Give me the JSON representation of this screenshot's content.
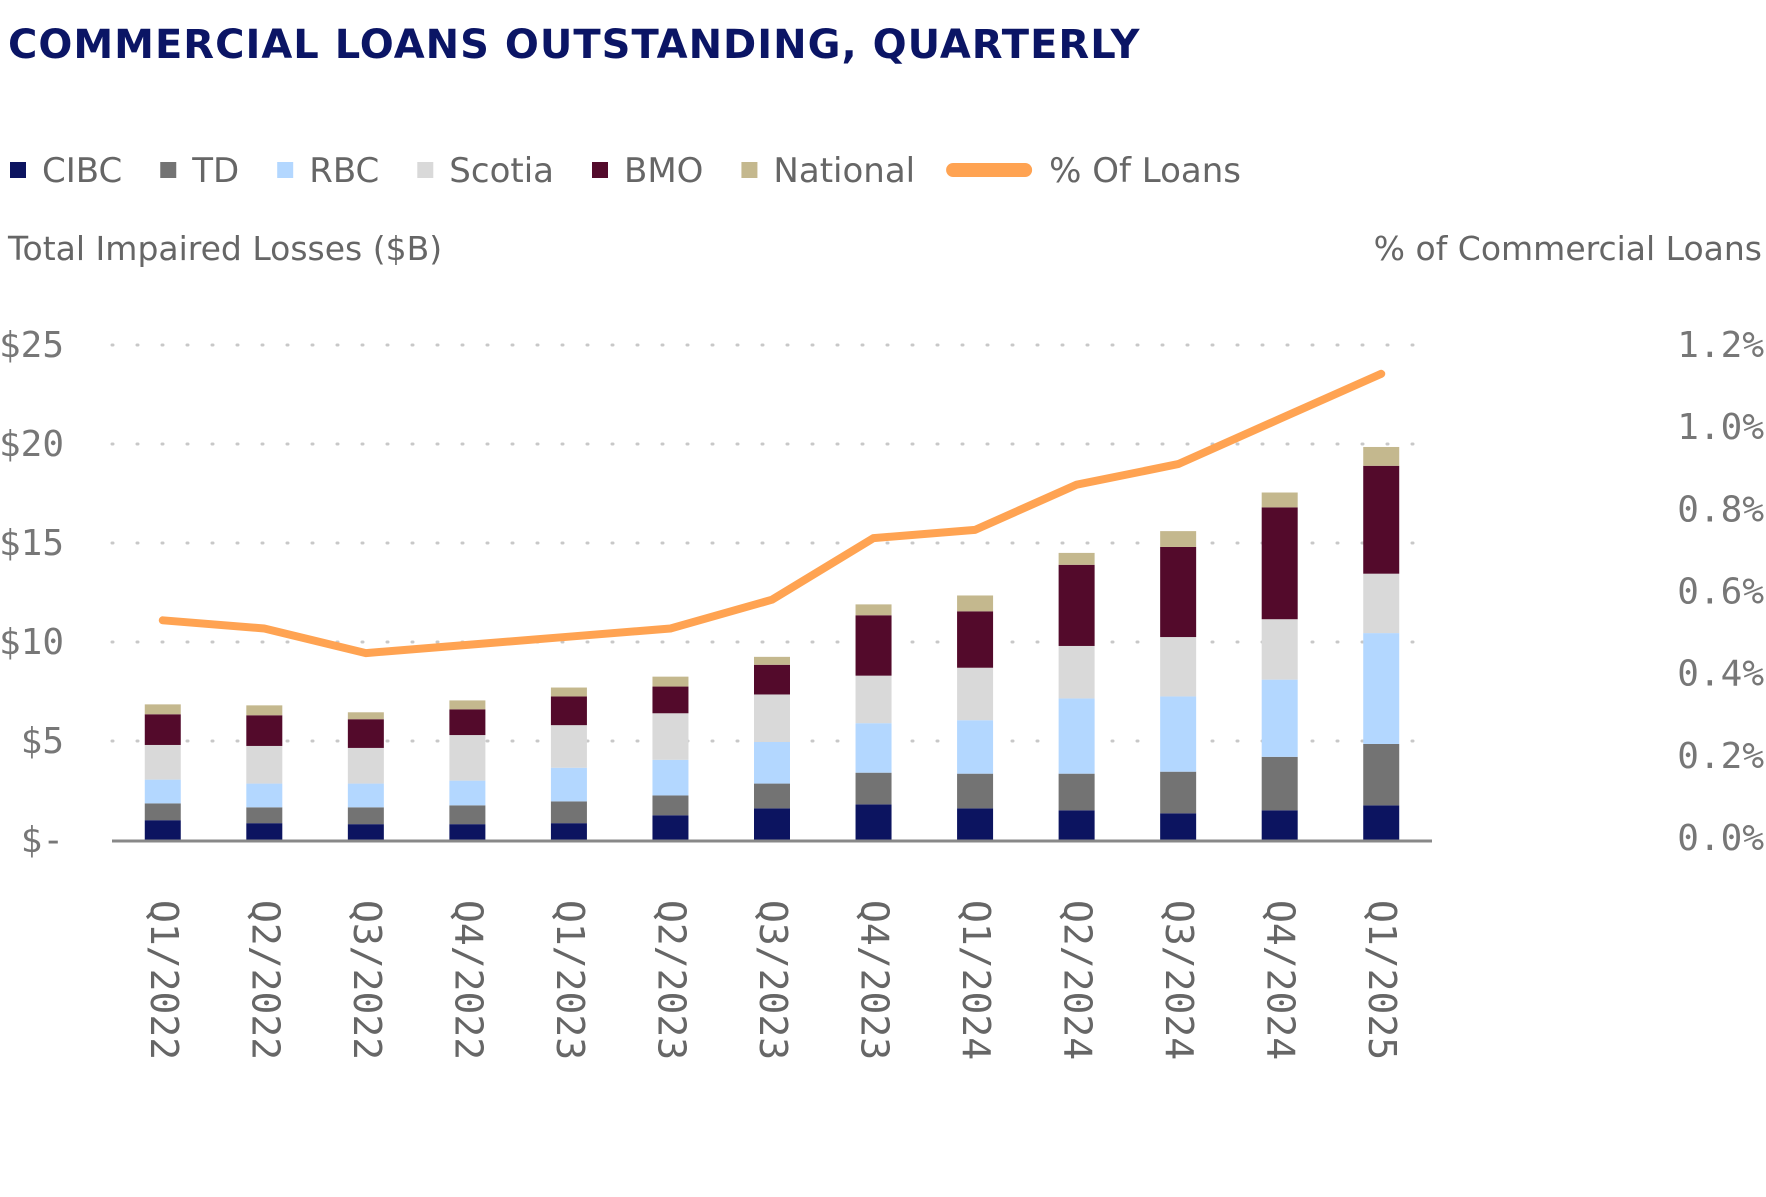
{
  "chart_data": {
    "type": "bar",
    "stacked": true,
    "title": "COMMERCIAL LOANS OUTSTANDING, QUARTERLY",
    "ylabel": "Total Impaired Losses ($B)",
    "y2label": "% of Commercial Loans",
    "ylim": [
      0,
      25
    ],
    "y2lim": [
      0,
      1.2
    ],
    "yticks": [
      {
        "value": 0,
        "label": "$-"
      },
      {
        "value": 5,
        "label": "$5"
      },
      {
        "value": 10,
        "label": "$10"
      },
      {
        "value": 15,
        "label": "$15"
      },
      {
        "value": 20,
        "label": "$20"
      },
      {
        "value": 25,
        "label": "$25"
      }
    ],
    "y2ticks": [
      {
        "value": 0.0,
        "label": "0.0%"
      },
      {
        "value": 0.2,
        "label": "0.2%"
      },
      {
        "value": 0.4,
        "label": "0.4%"
      },
      {
        "value": 0.6,
        "label": "0.6%"
      },
      {
        "value": 0.8,
        "label": "0.8%"
      },
      {
        "value": 1.0,
        "label": "1.0%"
      },
      {
        "value": 1.2,
        "label": "1.2%"
      }
    ],
    "grid": "horizontal-dotted",
    "legend_position": "top",
    "categories": [
      "Q1/2022",
      "Q2/2022",
      "Q3/2022",
      "Q4/2022",
      "Q1/2023",
      "Q2/2023",
      "Q3/2023",
      "Q4/2023",
      "Q1/2024",
      "Q2/2024",
      "Q3/2024",
      "Q4/2024",
      "Q1/2025"
    ],
    "series": [
      {
        "name": "CIBC",
        "color": "#0c1460",
        "values": [
          1.0,
          0.85,
          0.8,
          0.8,
          0.85,
          1.25,
          1.6,
          1.8,
          1.6,
          1.5,
          1.35,
          1.5,
          1.75
        ]
      },
      {
        "name": "TD",
        "color": "#737373",
        "values": [
          0.85,
          0.8,
          0.85,
          0.95,
          1.1,
          1.0,
          1.25,
          1.6,
          1.75,
          1.85,
          2.1,
          2.7,
          3.1
        ]
      },
      {
        "name": "RBC",
        "color": "#b3d7ff",
        "values": [
          1.2,
          1.2,
          1.2,
          1.25,
          1.7,
          1.8,
          2.1,
          2.5,
          2.7,
          3.8,
          3.8,
          3.9,
          5.6
        ]
      },
      {
        "name": "Scotia",
        "color": "#d9d9d9",
        "values": [
          1.75,
          1.9,
          1.8,
          2.3,
          2.15,
          2.35,
          2.4,
          2.4,
          2.65,
          2.65,
          3.0,
          3.05,
          3.0
        ]
      },
      {
        "name": "BMO",
        "color": "#530a2b",
        "values": [
          1.55,
          1.55,
          1.45,
          1.3,
          1.45,
          1.35,
          1.5,
          3.05,
          2.85,
          4.1,
          4.55,
          5.65,
          5.45
        ]
      },
      {
        "name": "National",
        "color": "#c4b88e",
        "values": [
          0.5,
          0.5,
          0.35,
          0.45,
          0.45,
          0.5,
          0.4,
          0.55,
          0.8,
          0.6,
          0.8,
          0.75,
          0.95
        ]
      }
    ],
    "line_series": {
      "name": "% Of Loans",
      "color": "#ffa352",
      "axis": "right",
      "values": [
        0.53,
        0.51,
        0.45,
        0.47,
        0.49,
        0.51,
        0.58,
        0.73,
        0.75,
        0.86,
        0.91,
        1.02,
        1.13
      ]
    },
    "legend": [
      {
        "label": "CIBC",
        "color": "#0c1460",
        "kind": "square"
      },
      {
        "label": "TD",
        "color": "#737373",
        "kind": "square"
      },
      {
        "label": "RBC",
        "color": "#b3d7ff",
        "kind": "square"
      },
      {
        "label": "Scotia",
        "color": "#d9d9d9",
        "kind": "square"
      },
      {
        "label": "BMO",
        "color": "#530a2b",
        "kind": "square"
      },
      {
        "label": "National",
        "color": "#c4b88e",
        "kind": "square"
      },
      {
        "label": "% Of Loans",
        "color": "#ffa352",
        "kind": "line"
      }
    ]
  }
}
